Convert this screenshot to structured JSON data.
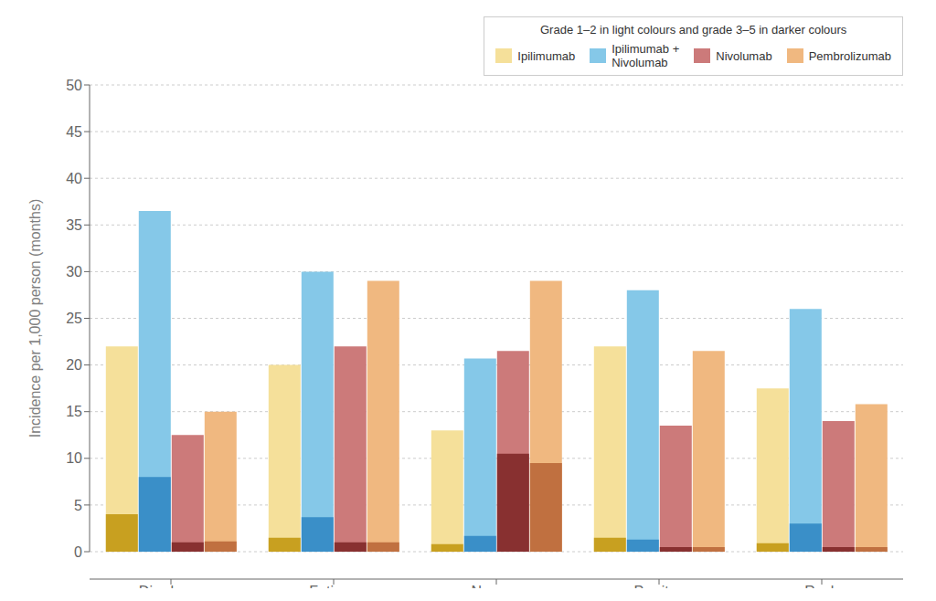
{
  "chart_data": {
    "type": "bar",
    "ylabel": "Incidence per 1,000 person (months)",
    "legend_title": "Grade 1–2 in light colours and grade 3–5 in darker colours",
    "categories": [
      "Diarrhoea",
      "Fatigue",
      "Nausea",
      "Pruritus",
      "Rash"
    ],
    "series": [
      {
        "name": "Ipilimumab",
        "color": "#F5E09A",
        "dark_color": "#C8A020",
        "values": [
          22.0,
          20.0,
          13.0,
          22.0,
          17.5
        ],
        "grade35_values": [
          4.0,
          1.5,
          0.8,
          1.5,
          0.9
        ]
      },
      {
        "name": "Ipilimumab +\nNivolumab",
        "color": "#85C8E8",
        "dark_color": "#3A8FC8",
        "values": [
          36.5,
          30.0,
          20.7,
          28.0,
          26.0
        ],
        "grade35_values": [
          8.0,
          3.7,
          1.7,
          1.3,
          3.0
        ]
      },
      {
        "name": "Nivolumab",
        "color": "#CC7A7A",
        "dark_color": "#883030",
        "values": [
          12.5,
          22.0,
          21.5,
          13.5,
          14.0
        ],
        "grade35_values": [
          1.0,
          1.0,
          10.5,
          0.5,
          0.5
        ]
      },
      {
        "name": "Pembrolizumab",
        "color": "#F0B880",
        "dark_color": "#C07040",
        "values": [
          15.0,
          29.0,
          29.0,
          21.5,
          15.8
        ],
        "grade35_values": [
          1.1,
          1.0,
          9.5,
          0.5,
          0.5
        ]
      }
    ],
    "ylim": [
      0,
      50
    ],
    "yticks": [
      0,
      5,
      10,
      15,
      20,
      25,
      30,
      35,
      40,
      45,
      50
    ],
    "grid": true,
    "legend": "upper right"
  }
}
